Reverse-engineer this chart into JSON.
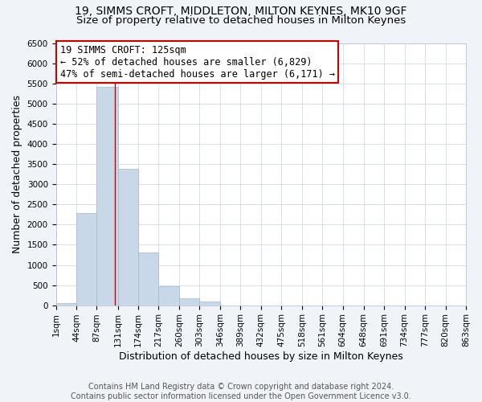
{
  "title": "19, SIMMS CROFT, MIDDLETON, MILTON KEYNES, MK10 9GF",
  "subtitle": "Size of property relative to detached houses in Milton Keynes",
  "xlabel": "Distribution of detached houses by size in Milton Keynes",
  "ylabel": "Number of detached properties",
  "bar_color": "#c8d8e8",
  "bar_edge_color": "#a0b8cc",
  "bin_edges": [
    1,
    44,
    87,
    131,
    174,
    217,
    260,
    303,
    346,
    389,
    432,
    475,
    518,
    561,
    604,
    648,
    691,
    734,
    777,
    820,
    863
  ],
  "bar_heights": [
    60,
    2280,
    5430,
    3380,
    1310,
    480,
    180,
    95,
    0,
    0,
    0,
    0,
    0,
    0,
    0,
    0,
    0,
    0,
    0,
    0
  ],
  "tick_labels": [
    "1sqm",
    "44sqm",
    "87sqm",
    "131sqm",
    "174sqm",
    "217sqm",
    "260sqm",
    "303sqm",
    "346sqm",
    "389sqm",
    "432sqm",
    "475sqm",
    "518sqm",
    "561sqm",
    "604sqm",
    "648sqm",
    "691sqm",
    "734sqm",
    "777sqm",
    "820sqm",
    "863sqm"
  ],
  "ylim": [
    0,
    6500
  ],
  "yticks": [
    0,
    500,
    1000,
    1500,
    2000,
    2500,
    3000,
    3500,
    4000,
    4500,
    5000,
    5500,
    6000,
    6500
  ],
  "vline_x": 125,
  "vline_color": "#cc0000",
  "annotation_line1": "19 SIMMS CROFT: 125sqm",
  "annotation_line2": "← 52% of detached houses are smaller (6,829)",
  "annotation_line3": "47% of semi-detached houses are larger (6,171) →",
  "annotation_box_color": "#ffffff",
  "annotation_box_edge_color": "#cc0000",
  "footer_line1": "Contains HM Land Registry data © Crown copyright and database right 2024.",
  "footer_line2": "Contains public sector information licensed under the Open Government Licence v3.0.",
  "background_color": "#f0f4f8",
  "plot_background_color": "#ffffff",
  "grid_color": "#c8d4e0",
  "title_fontsize": 10,
  "subtitle_fontsize": 9.5,
  "axis_label_fontsize": 9,
  "tick_fontsize": 7.5,
  "annotation_fontsize": 8.5,
  "footer_fontsize": 7
}
